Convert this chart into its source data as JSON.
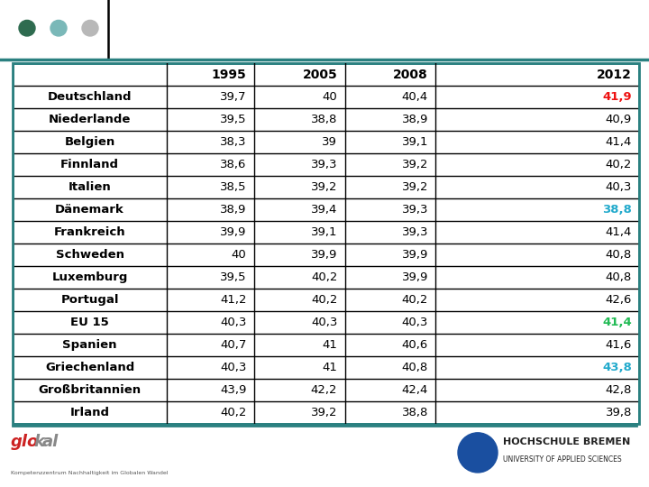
{
  "headers": [
    "",
    "1995",
    "2005",
    "2008",
    "2012"
  ],
  "rows": [
    [
      "Deutschland",
      "39,7",
      "40",
      "40,4",
      "41,9"
    ],
    [
      "Niederlande",
      "39,5",
      "38,8",
      "38,9",
      "40,9"
    ],
    [
      "Belgien",
      "38,3",
      "39",
      "39,1",
      "41,4"
    ],
    [
      "Finnland",
      "38,6",
      "39,3",
      "39,2",
      "40,2"
    ],
    [
      "Italien",
      "38,5",
      "39,2",
      "39,2",
      "40,3"
    ],
    [
      "Dänemark",
      "38,9",
      "39,4",
      "39,3",
      "38,8"
    ],
    [
      "Frankreich",
      "39,9",
      "39,1",
      "39,3",
      "41,4"
    ],
    [
      "Schweden",
      "40",
      "39,9",
      "39,9",
      "40,8"
    ],
    [
      "Luxemburg",
      "39,5",
      "40,2",
      "39,9",
      "40,8"
    ],
    [
      "Portugal",
      "41,2",
      "40,2",
      "40,2",
      "42,6"
    ],
    [
      "EU 15",
      "40,3",
      "40,3",
      "40,3",
      "41,4"
    ],
    [
      "Spanien",
      "40,7",
      "41",
      "40,6",
      "41,6"
    ],
    [
      "Griechenland",
      "40,3",
      "41",
      "40,8",
      "43,8"
    ],
    [
      "Großbritannien",
      "43,9",
      "42,2",
      "42,4",
      "42,8"
    ],
    [
      "Irland",
      "40,2",
      "39,2",
      "38,8",
      "39,8"
    ]
  ],
  "special": {
    "Deutschland": {
      "col": 4,
      "color": "#ee1111"
    },
    "Dänemark": {
      "col": 4,
      "color": "#22aacc"
    },
    "EU 15": {
      "col": 4,
      "color": "#22bb55"
    },
    "Griechenland": {
      "col": 4,
      "color": "#22aacc"
    }
  },
  "fig_bg": "#ffffff",
  "table_border_color": "#2a8080",
  "inner_line_color": "#000000",
  "font_size": 9.5,
  "header_font_size": 10,
  "top_circles": [
    "#2e6b4f",
    "#7ab8b8",
    "#b8b8b8"
  ],
  "top_line_color": "#2a8080",
  "bottom_bar_bg": "#ffffff",
  "glokal_red": "#cc2222",
  "glokal_blue": "#2244bb",
  "hb_circle_color": "#1a4fa0",
  "hb_text_color": "#222222"
}
